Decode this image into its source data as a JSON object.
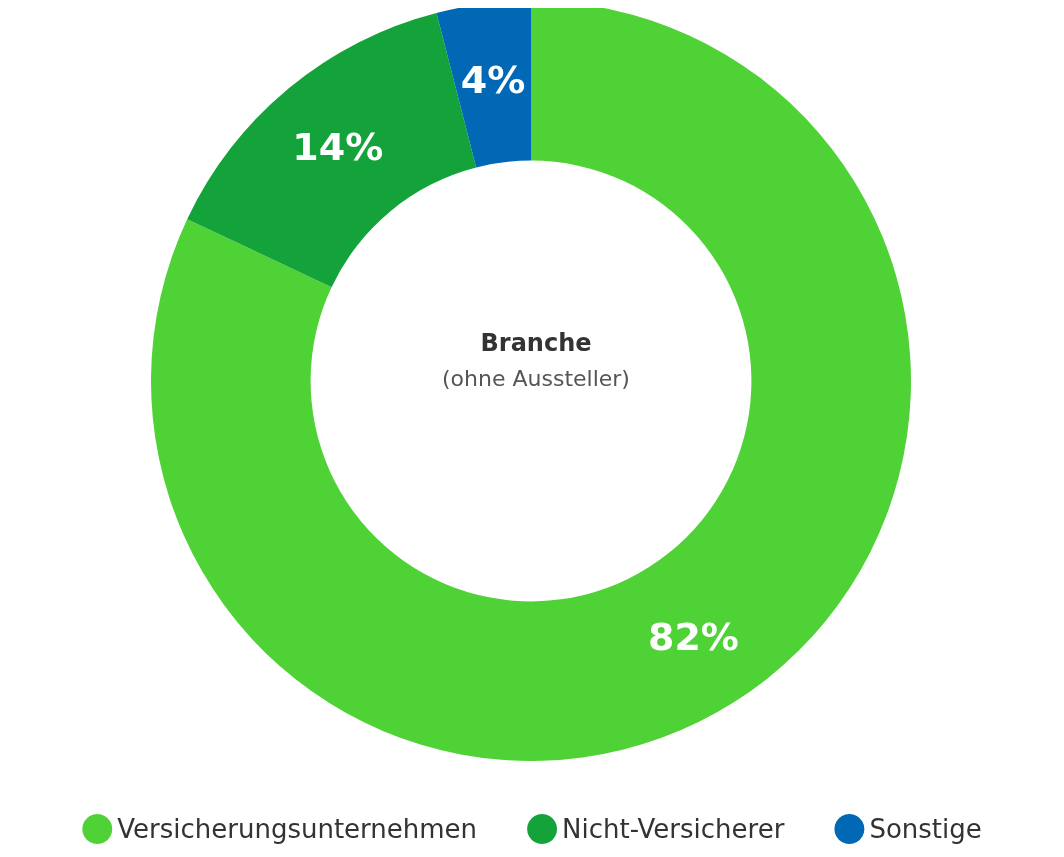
{
  "chart_data": {
    "type": "donut",
    "title": "Branche",
    "subtitle": "(ohne Aussteller)",
    "categories": [
      "Versicherungsunternehmen",
      "Nicht-Versicherer",
      "Sonstige"
    ],
    "values": [
      82,
      14,
      4
    ],
    "colors": [
      "#4fd236",
      "#14a33a",
      "#0068b5"
    ],
    "value_labels": [
      "82%",
      "14%",
      "4%"
    ],
    "legend": "bottom"
  }
}
